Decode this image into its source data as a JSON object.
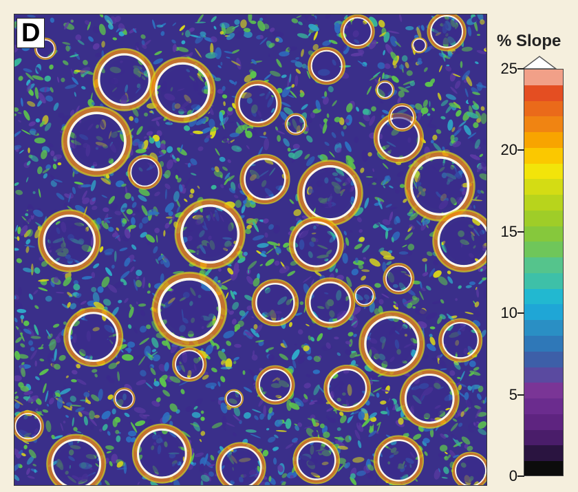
{
  "panel_label": "D",
  "legend": {
    "title": "% Slope",
    "min": 0,
    "max": 25,
    "ticks": [
      {
        "value": 25,
        "label": "25"
      },
      {
        "value": 20,
        "label": "20"
      },
      {
        "value": 15,
        "label": "15"
      },
      {
        "value": 10,
        "label": "10"
      },
      {
        "value": 5,
        "label": "5"
      },
      {
        "value": 0,
        "label": "0"
      }
    ],
    "colors": [
      "#0c0c0c",
      "#2a1440",
      "#4a1d6a",
      "#5e2480",
      "#6b2c8e",
      "#7a3596",
      "#5a4aa0",
      "#3d5fa8",
      "#2f78b8",
      "#2a8fc4",
      "#1fa6d6",
      "#22b8d0",
      "#3ec0a8",
      "#55c48c",
      "#6fc65a",
      "#86c83c",
      "#9fcd28",
      "#b8d41c",
      "#d4dc14",
      "#f2e40a",
      "#fbc800",
      "#f8a400",
      "#f08412",
      "#ea6a1a",
      "#e44e22",
      "#f1a088"
    ]
  },
  "map_palette": {
    "background": "#3a2f8a",
    "purple_dark": "#3b2a8c",
    "purple": "#5b3aa2",
    "blue": "#2e6fc0",
    "cyan": "#2fa8c8",
    "teal": "#38b49a",
    "green": "#5cc24e",
    "yellow": "#d8d61c",
    "orange": "#f08a12",
    "red": "#e44e22",
    "white": "#fbf7ea"
  }
}
